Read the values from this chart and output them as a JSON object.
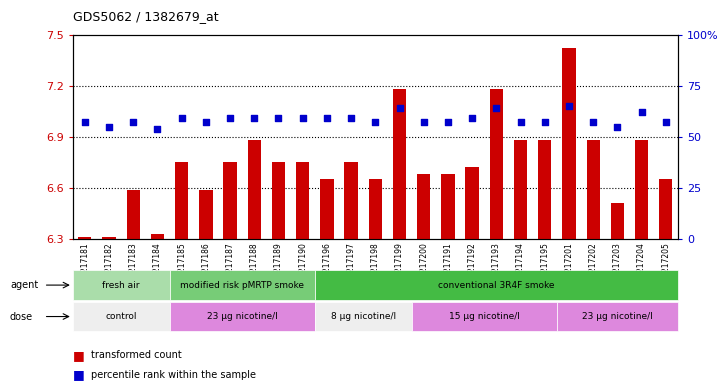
{
  "title": "GDS5062 / 1382679_at",
  "samples": [
    "GSM1217181",
    "GSM1217182",
    "GSM1217183",
    "GSM1217184",
    "GSM1217185",
    "GSM1217186",
    "GSM1217187",
    "GSM1217188",
    "GSM1217189",
    "GSM1217190",
    "GSM1217196",
    "GSM1217197",
    "GSM1217198",
    "GSM1217199",
    "GSM1217200",
    "GSM1217191",
    "GSM1217192",
    "GSM1217193",
    "GSM1217194",
    "GSM1217195",
    "GSM1217201",
    "GSM1217202",
    "GSM1217203",
    "GSM1217204",
    "GSM1217205"
  ],
  "bar_values": [
    6.31,
    6.31,
    6.59,
    6.33,
    6.75,
    6.59,
    6.75,
    6.88,
    6.75,
    6.75,
    6.65,
    6.75,
    6.65,
    7.18,
    6.68,
    6.68,
    6.72,
    7.18,
    6.88,
    6.88,
    7.42,
    6.88,
    6.51,
    6.88,
    6.65
  ],
  "dot_values": [
    57,
    55,
    57,
    54,
    59,
    57,
    59,
    59,
    59,
    59,
    59,
    59,
    57,
    64,
    57,
    57,
    59,
    64,
    57,
    57,
    65,
    57,
    55,
    62,
    57
  ],
  "ymin": 6.3,
  "ymax": 7.5,
  "yticks": [
    6.3,
    6.6,
    6.9,
    7.2,
    7.5
  ],
  "y2min": 0,
  "y2max": 100,
  "y2ticks": [
    0,
    25,
    50,
    75,
    100
  ],
  "bar_color": "#cc0000",
  "dot_color": "#0000cc",
  "agent_groups": [
    {
      "label": "fresh air",
      "start": 0,
      "end": 4,
      "color": "#aaddaa"
    },
    {
      "label": "modified risk pMRTP smoke",
      "start": 4,
      "end": 10,
      "color": "#77cc77"
    },
    {
      "label": "conventional 3R4F smoke",
      "start": 10,
      "end": 25,
      "color": "#44bb44"
    }
  ],
  "dose_groups": [
    {
      "label": "control",
      "start": 0,
      "end": 4,
      "color": "#eeeeee"
    },
    {
      "label": "23 µg nicotine/l",
      "start": 4,
      "end": 10,
      "color": "#dd88dd"
    },
    {
      "label": "8 µg nicotine/l",
      "start": 10,
      "end": 14,
      "color": "#eeeeee"
    },
    {
      "label": "15 µg nicotine/l",
      "start": 14,
      "end": 20,
      "color": "#dd88dd"
    },
    {
      "label": "23 µg nicotine/l",
      "start": 20,
      "end": 25,
      "color": "#dd88dd"
    }
  ],
  "legend_items": [
    {
      "label": "transformed count",
      "color": "#cc0000"
    },
    {
      "label": "percentile rank within the sample",
      "color": "#0000cc"
    }
  ]
}
